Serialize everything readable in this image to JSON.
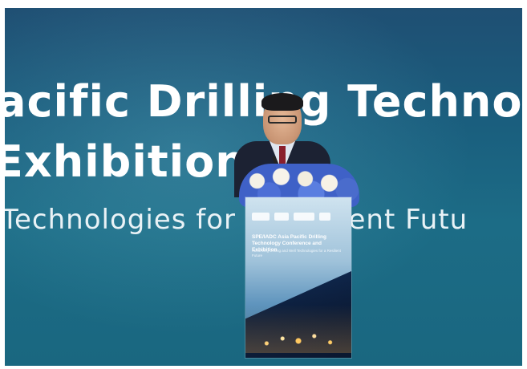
{
  "banner": {
    "line1": "acific Drilling Techno",
    "line2": "Exhibition",
    "line3": "Technologies for a Resilient Futu"
  },
  "lectern": {
    "logos": [
      "IADC",
      "SPE",
      "Drilling",
      "logo"
    ],
    "title": "SPE/IADC Asia Pacific Drilling Technology Conference and Exhibition",
    "subtitle": "Advancing Drilling and Well Technologies for a Resilient Future"
  },
  "colors": {
    "screen": "#1c6c86",
    "lectern_top": "#cfe3ef",
    "lectern_bottom": "#214a78",
    "flowers_blue": "#3f61c7"
  }
}
